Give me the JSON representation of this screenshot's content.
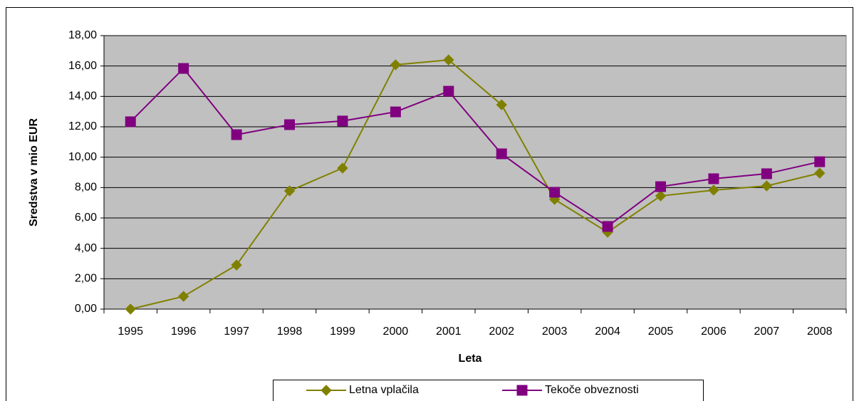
{
  "chart_data": {
    "type": "line",
    "categories": [
      "1995",
      "1996",
      "1997",
      "1998",
      "1999",
      "2000",
      "2001",
      "2002",
      "2003",
      "2004",
      "2005",
      "2006",
      "2007",
      "2008"
    ],
    "series": [
      {
        "name": "Letna vplačila",
        "color": "#808000",
        "marker": "diamond",
        "values": [
          0,
          0.84,
          2.9,
          7.78,
          9.28,
          16.08,
          16.4,
          13.45,
          7.22,
          5.06,
          7.45,
          7.83,
          8.11,
          8.95
        ]
      },
      {
        "name": "Tekoče obveznosti",
        "color": "#800080",
        "marker": "square",
        "values": [
          12.33,
          15.84,
          11.48,
          12.14,
          12.38,
          12.98,
          14.34,
          10.22,
          7.69,
          5.44,
          8.06,
          8.58,
          8.91,
          9.7
        ]
      }
    ],
    "xlabel": "Leta",
    "ylabel": "Sredstva v mio EUR",
    "ylim": [
      0,
      18
    ],
    "yticks": [
      {
        "value": 0,
        "label": "0,00"
      },
      {
        "value": 2,
        "label": "2,00"
      },
      {
        "value": 4,
        "label": "4,00"
      },
      {
        "value": 6,
        "label": "6,00"
      },
      {
        "value": 8,
        "label": "8,00"
      },
      {
        "value": 10,
        "label": "10,00"
      },
      {
        "value": 12,
        "label": "12,00"
      },
      {
        "value": 14,
        "label": "14,00"
      },
      {
        "value": 16,
        "label": "16,00"
      },
      {
        "value": 18,
        "label": "18,00"
      }
    ],
    "grid": true,
    "plot_background": "#c0c0c0",
    "legend": "bottom"
  }
}
